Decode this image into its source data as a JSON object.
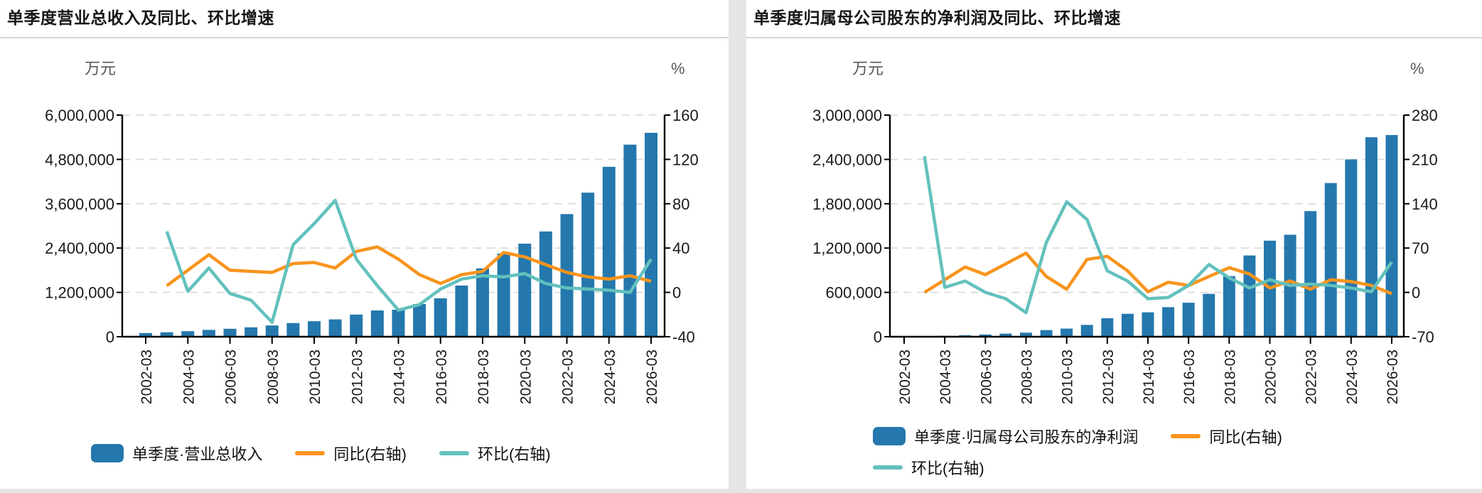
{
  "page": {
    "background": "#e6e6e6",
    "card_background": "#ffffff"
  },
  "colors": {
    "bar": "#2478ad",
    "yoy_line": "#f8941d",
    "qoq_line": "#63c1bd",
    "grid": "#d9d9d9",
    "axis": "#000000",
    "tick_text": "#1a1a1a",
    "unit_text": "#575757",
    "title_text": "#161616",
    "separator": "#d6d6d6"
  },
  "chart_data": [
    {
      "type": "combo-bar-line",
      "title": "单季度营业总收入及同比、环比增速",
      "grid": "horizontal-dashed",
      "legend_position": "bottom",
      "x_tick_step": 2,
      "categories": [
        "2002-03",
        "2003-03",
        "2004-03",
        "2005-03",
        "2006-03",
        "2007-03",
        "2008-03",
        "2009-03",
        "2010-03",
        "2011-03",
        "2012-03",
        "2013-03",
        "2014-03",
        "2015-03",
        "2016-03",
        "2017-03",
        "2018-03",
        "2019-03",
        "2020-03",
        "2021-03",
        "2022-03",
        "2023-03",
        "2024-03",
        "2025-03",
        "2026-03"
      ],
      "left_axis": {
        "unit": "万元",
        "min": 0,
        "max": 6000000,
        "tick_labels": [
          "0",
          "1,200,000",
          "2,400,000",
          "3,600,000",
          "4,800,000",
          "6,000,000"
        ]
      },
      "right_axis": {
        "unit": "%",
        "min": -40,
        "max": 160,
        "tick_labels": [
          "-40",
          "0",
          "40",
          "80",
          "120",
          "160"
        ]
      },
      "series": [
        {
          "name": "单季度·营业总收入",
          "kind": "bar",
          "axis": "left",
          "color": "#2478ad",
          "values": [
            100000,
            120000,
            150000,
            185000,
            215000,
            255000,
            305000,
            370000,
            420000,
            470000,
            600000,
            710000,
            730000,
            885000,
            1040000,
            1385000,
            1850000,
            2250000,
            2520000,
            2850000,
            3320000,
            3900000,
            4600000,
            5200000,
            5520000
          ]
        },
        {
          "name": "同比(右轴)",
          "kind": "line",
          "axis": "right",
          "color": "#f8941d",
          "values": [
            null,
            6,
            20,
            34,
            20,
            19,
            18,
            26,
            27,
            22,
            37,
            41,
            30,
            16,
            8,
            16,
            19,
            36,
            32,
            25,
            18,
            14,
            12,
            15,
            10
          ]
        },
        {
          "name": "环比(右轴)",
          "kind": "line",
          "axis": "right",
          "color": "#63c1bd",
          "values": [
            null,
            55,
            1,
            22,
            -1,
            -7,
            -27,
            43,
            62,
            83,
            30,
            6,
            -16,
            -11,
            3,
            12,
            15,
            14,
            17,
            8,
            4,
            3,
            2,
            0,
            30
          ]
        }
      ],
      "legend_rows": [
        [
          0,
          1,
          2
        ]
      ]
    },
    {
      "type": "combo-bar-line",
      "title": "单季度归属母公司股东的净利润及同比、环比增速",
      "grid": "horizontal-dashed",
      "legend_position": "bottom",
      "x_tick_step": 2,
      "categories": [
        "2002-03",
        "2003-03",
        "2004-03",
        "2005-03",
        "2006-03",
        "2007-03",
        "2008-03",
        "2009-03",
        "2010-03",
        "2011-03",
        "2012-03",
        "2013-03",
        "2014-03",
        "2015-03",
        "2016-03",
        "2017-03",
        "2018-03",
        "2019-03",
        "2020-03",
        "2021-03",
        "2022-03",
        "2023-03",
        "2024-03",
        "2025-03",
        "2026-03"
      ],
      "left_axis": {
        "unit": "万元",
        "min": 0,
        "max": 3000000,
        "tick_labels": [
          "0",
          "600,000",
          "1,200,000",
          "1,800,000",
          "2,400,000",
          "3,000,000"
        ]
      },
      "right_axis": {
        "unit": "%",
        "min": -70,
        "max": 280,
        "tick_labels": [
          "-70",
          "0",
          "70",
          "140",
          "210",
          "280"
        ]
      },
      "series": [
        {
          "name": "单季度·归属母公司股东的净利润",
          "kind": "bar",
          "axis": "left",
          "color": "#2478ad",
          "values": [
            5000,
            8000,
            12000,
            20000,
            30000,
            42000,
            55000,
            90000,
            110000,
            160000,
            250000,
            310000,
            330000,
            400000,
            460000,
            580000,
            820000,
            1100000,
            1300000,
            1380000,
            1700000,
            2080000,
            2400000,
            2700000,
            2730000
          ]
        },
        {
          "name": "同比(右轴)",
          "kind": "line",
          "axis": "right",
          "color": "#f8941d",
          "values": [
            null,
            0,
            20,
            40,
            28,
            45,
            62,
            25,
            5,
            52,
            57,
            34,
            1,
            16,
            11,
            25,
            39,
            29,
            7,
            18,
            5,
            20,
            17,
            11,
            -2
          ]
        },
        {
          "name": "环比(右轴)",
          "kind": "line",
          "axis": "right",
          "color": "#63c1bd",
          "values": [
            null,
            215,
            8,
            18,
            0,
            -10,
            -32,
            79,
            143,
            115,
            34,
            18,
            -10,
            -8,
            11,
            44,
            23,
            7,
            20,
            11,
            13,
            11,
            7,
            1,
            48
          ]
        }
      ],
      "legend_rows": [
        [
          0,
          1
        ],
        [
          2
        ]
      ]
    }
  ]
}
